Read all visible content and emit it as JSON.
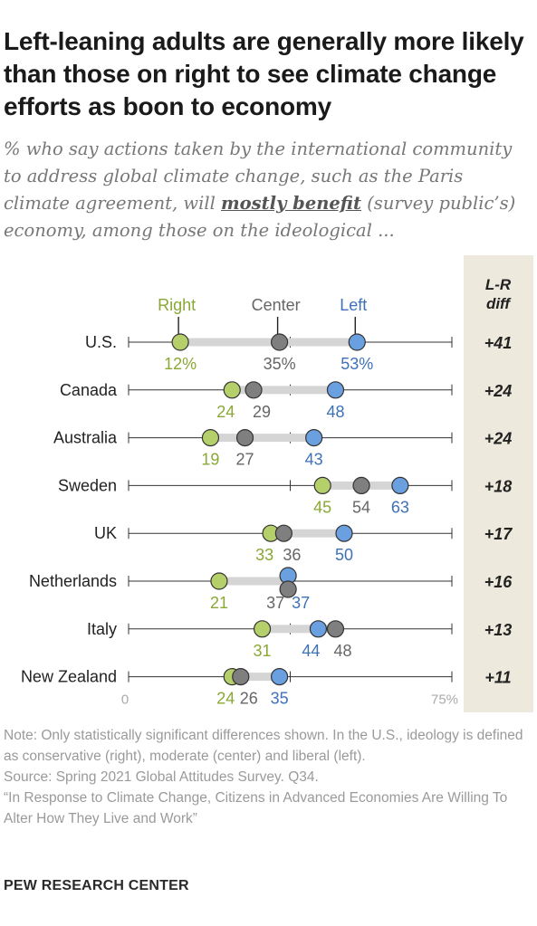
{
  "title": "Left-leaning adults are generally more likely than those on right to see climate change efforts as boon to economy",
  "subtitle_pre": "% who say actions taken by the international community to address global climate change, such as the Paris climate agreement, will ",
  "subtitle_emph": "mostly benefit",
  "subtitle_post": " (survey public’s) economy, among those on the ideological ...",
  "notes": {
    "note": "Note: Only statistically significant differences shown. In the U.S., ideology is defined as conservative (right), moderate (center) and liberal (left).",
    "source": "Source: Spring 2021 Global Attitudes Survey. Q34.",
    "report": "“In Response to Climate Change, Citizens in Advanced Economies Are Willing To Alter How They Live and Work”"
  },
  "brand": "PEW RESEARCH CENTER",
  "colors": {
    "right": "#b5cf6b",
    "center": "#7f7f7f",
    "left": "#6a9fe0",
    "right_text": "#8aa834",
    "center_text": "#666666",
    "left_text": "#3d72b8",
    "range_bar": "#d5d5d5",
    "diff_panel": "#ede9dc"
  },
  "chart_data": {
    "type": "dot-range",
    "xlim": [
      0,
      75
    ],
    "x_tick_labels": [
      "0",
      "75%"
    ],
    "legend": [
      "Right",
      "Center",
      "Left"
    ],
    "diff_header": "L-R diff",
    "categories": [
      "U.S.",
      "Canada",
      "Australia",
      "Sweden",
      "UK",
      "Netherlands",
      "Italy",
      "New Zealand"
    ],
    "series": [
      {
        "name": "Right",
        "values": [
          12,
          24,
          19,
          45,
          33,
          21,
          31,
          24
        ],
        "labels": [
          "12%",
          "24",
          "19",
          "45",
          "33",
          "21",
          "31",
          "24"
        ]
      },
      {
        "name": "Center",
        "values": [
          35,
          29,
          27,
          54,
          36,
          37,
          48,
          26
        ],
        "labels": [
          "35%",
          "29",
          "27",
          "54",
          "36",
          "37",
          "48",
          "26"
        ]
      },
      {
        "name": "Left",
        "values": [
          53,
          48,
          43,
          63,
          50,
          37,
          44,
          35
        ],
        "labels": [
          "53%",
          "48",
          "43",
          "63",
          "50",
          "37",
          "44",
          "35"
        ]
      }
    ],
    "diff": [
      "+41",
      "+24",
      "+24",
      "+18",
      "+17",
      "+16",
      "+13",
      "+11"
    ]
  }
}
